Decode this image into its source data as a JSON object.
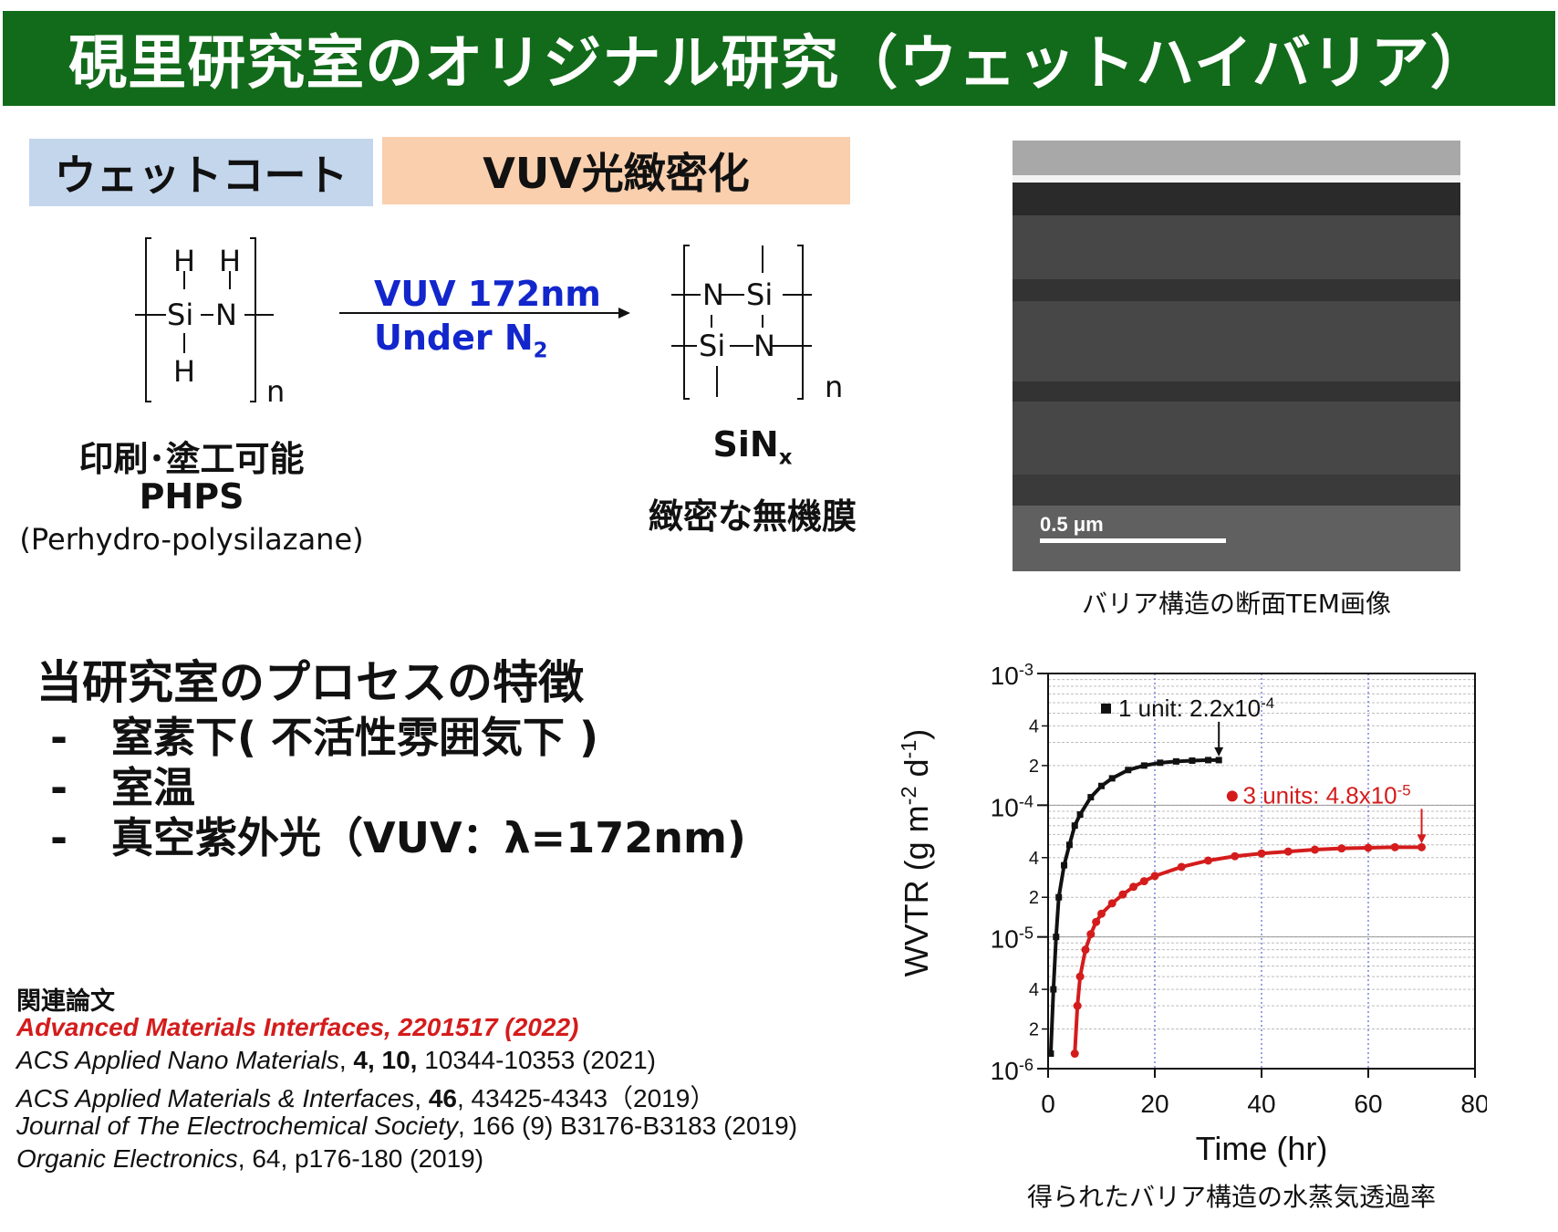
{
  "banner": {
    "title": "硯里研究室のオリジナル研究（ウェットハイバリア）"
  },
  "steps": {
    "wet_coat": "ウェットコート",
    "vuv": "VUV光緻密化"
  },
  "scheme": {
    "conditions_line1": "VUV 172nm",
    "conditions_line2": "Under N",
    "conditions_line2_sub": "2",
    "reactant": {
      "atoms": {
        "h1": "H",
        "h2": "H",
        "si": "Si",
        "n": "N",
        "h3": "H"
      },
      "repeat": "n",
      "label1": "印刷･塗工可能",
      "label2": "PHPS",
      "label3": "(Perhydro-polysilazane)"
    },
    "product": {
      "atoms": {
        "n_top": "N",
        "si_top": "Si",
        "si_bottom": "Si",
        "n_bottom": "N"
      },
      "repeat": "n",
      "formula": "SiN",
      "formula_sub": "x",
      "label": "緻密な無機膜"
    }
  },
  "tem": {
    "scale_label": "0.5 μm",
    "caption": "バリア構造の断面TEM画像"
  },
  "features": {
    "heading": "当研究室のプロセスの特徴",
    "dash": "-",
    "items": [
      "窒素下( 不活性雰囲気下 )",
      "室温",
      "真空紫外光（VUV：λ=172nm)"
    ]
  },
  "papers": {
    "heading": "関連論文",
    "highlight": "Advanced Materials Interfaces, 2201517 (2022)",
    "p1_journal": "ACS Applied Nano Materials",
    "p1_sep": ", ",
    "p1_vol": "4, 10,",
    "p1_rest": " 10344-10353 (2021)",
    "p2_journal": "ACS Applied Materials & Interfaces",
    "p2_sep": ", ",
    "p2_vol": "46",
    "p2_rest": ", 43425-4343（2019）",
    "p3_journal": "Journal of The Electrochemical Society",
    "p3_rest": ", 166 (9) B3176-B3183 (2019)",
    "p4_journal": "Organic Electronics",
    "p4_rest": ", 64, p176-180 (2019)"
  },
  "chart_data": {
    "type": "scatter",
    "xlabel": "Time (hr)",
    "ylabel_main": "WVTR (g m",
    "ylabel_exp1": "-2",
    "ylabel_mid": " d",
    "ylabel_exp2": "-1",
    "ylabel_end": ")",
    "xlim": [
      0,
      80
    ],
    "ylim": [
      1e-06,
      0.001
    ],
    "yscale": "log",
    "x_ticks": [
      "0",
      "20",
      "40",
      "60",
      "80"
    ],
    "y_decade_base": "10",
    "y_decades": [
      {
        "value": 0.001,
        "exp": "-3"
      },
      {
        "value": 0.0001,
        "exp": "-4"
      },
      {
        "value": 1e-05,
        "exp": "-5"
      },
      {
        "value": 1e-06,
        "exp": "-6"
      }
    ],
    "y_minor_labels": [
      {
        "value": 0.0004,
        "label": "4"
      },
      {
        "value": 0.0002,
        "label": "2"
      },
      {
        "value": 4e-05,
        "label": "4"
      },
      {
        "value": 2e-05,
        "label": "2"
      },
      {
        "value": 4e-06,
        "label": "4"
      },
      {
        "value": 2e-06,
        "label": "2"
      }
    ],
    "grid": true,
    "series": [
      {
        "name": "1 unit",
        "annotation": "1 unit: 2.2x10",
        "annotation_exp": "-4",
        "color": "#111111",
        "marker": "square",
        "x": [
          0.5,
          1,
          1.5,
          2,
          3,
          4,
          5,
          6,
          8,
          10,
          12,
          15,
          18,
          21,
          24,
          27,
          30,
          32
        ],
        "y": [
          1.3e-06,
          4e-06,
          1e-05,
          2e-05,
          3.5e-05,
          5e-05,
          7e-05,
          8.5e-05,
          0.000115,
          0.00014,
          0.00016,
          0.000185,
          0.0002,
          0.00021,
          0.000215,
          0.000218,
          0.00022,
          0.00022
        ]
      },
      {
        "name": "3 units",
        "annotation": "3 units: 4.8x10",
        "annotation_exp": "-5",
        "color": "#d41c1c",
        "marker": "circle",
        "x": [
          5,
          5.5,
          6,
          7,
          8,
          9,
          10,
          12,
          14,
          16,
          18,
          20,
          25,
          30,
          35,
          40,
          45,
          50,
          55,
          60,
          65,
          70
        ],
        "y": [
          1.3e-06,
          3e-06,
          5e-06,
          8e-06,
          1.05e-05,
          1.3e-05,
          1.5e-05,
          1.8e-05,
          2.1e-05,
          2.4e-05,
          2.65e-05,
          2.9e-05,
          3.4e-05,
          3.8e-05,
          4.1e-05,
          4.3e-05,
          4.45e-05,
          4.6e-05,
          4.7e-05,
          4.75e-05,
          4.8e-05,
          4.8e-05
        ]
      }
    ]
  },
  "chart_caption": "得られたバリア構造の水蒸気透過率",
  "colors": {
    "banner": "#126b1a",
    "wet_box": "#c4d6ec",
    "vuv_box": "#f9cfae",
    "conditions": "#1226cc",
    "highlight": "#d41c1c"
  }
}
